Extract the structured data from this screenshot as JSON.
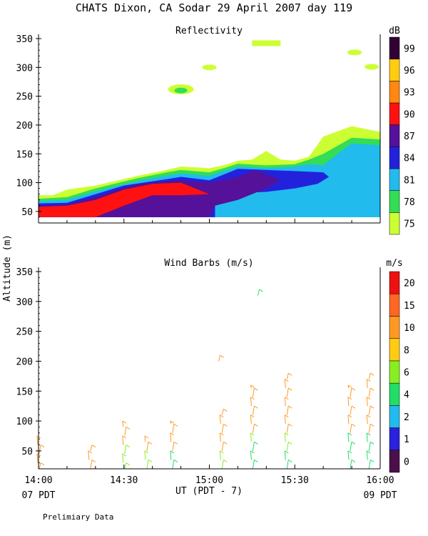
{
  "title": "CHATS Dixon, CA  Sodar  29 April 2007  day 119",
  "footer_note": "Prelimiary Data",
  "ylabel": "Altitude  (m)",
  "xlabel": "UT  (PDT - 7)",
  "x_left_sub": "07 PDT",
  "x_right_sub": "09 PDT",
  "x_ticks": [
    "14:00",
    "14:30",
    "15:00",
    "15:30",
    "16:00"
  ],
  "y_ticks": [
    "50",
    "100",
    "150",
    "200",
    "250",
    "300",
    "350"
  ],
  "chart_data": [
    {
      "type": "heatmap",
      "title": "Reflectivity",
      "colorbar_unit": "dB",
      "colorbar_levels": [
        "75",
        "78",
        "81",
        "84",
        "87",
        "90",
        "93",
        "96",
        "99"
      ],
      "colorbar_colors": [
        "#ccff33",
        "#33dd55",
        "#22bbee",
        "#2222dd",
        "#551199",
        "#ff1111",
        "#ff8811",
        "#ffcc11",
        "#330033"
      ],
      "x_range": [
        "14:00",
        "16:00"
      ],
      "ylim": [
        30,
        350
      ],
      "layers": [
        {
          "level": "75",
          "polygon": [
            [
              0,
              40
            ],
            [
              0,
              78
            ],
            [
              5,
              78
            ],
            [
              10,
              88
            ],
            [
              20,
              95
            ],
            [
              35,
              112
            ],
            [
              45,
              122
            ],
            [
              50,
              128
            ],
            [
              60,
              125
            ],
            [
              65,
              130
            ],
            [
              70,
              138
            ],
            [
              75,
              140
            ],
            [
              80,
              155
            ],
            [
              85,
              140
            ],
            [
              90,
              138
            ],
            [
              95,
              145
            ],
            [
              100,
              180
            ],
            [
              110,
              198
            ],
            [
              120,
              188
            ],
            [
              120,
              40
            ]
          ]
        },
        {
          "level": "78",
          "polygon": [
            [
              0,
              40
            ],
            [
              0,
              72
            ],
            [
              10,
              75
            ],
            [
              20,
              90
            ],
            [
              35,
              108
            ],
            [
              45,
              118
            ],
            [
              50,
              122
            ],
            [
              60,
              118
            ],
            [
              65,
              125
            ],
            [
              70,
              133
            ],
            [
              80,
              130
            ],
            [
              90,
              132
            ],
            [
              95,
              140
            ],
            [
              100,
              150
            ],
            [
              110,
              178
            ],
            [
              120,
              175
            ],
            [
              120,
              40
            ]
          ]
        },
        {
          "level": "81",
          "polygon": [
            [
              0,
              40
            ],
            [
              0,
              68
            ],
            [
              10,
              70
            ],
            [
              20,
              85
            ],
            [
              35,
              103
            ],
            [
              45,
              112
            ],
            [
              50,
              116
            ],
            [
              60,
              112
            ],
            [
              65,
              120
            ],
            [
              70,
              128
            ],
            [
              80,
              125
            ],
            [
              90,
              128
            ],
            [
              95,
              132
            ],
            [
              100,
              130
            ],
            [
              105,
              150
            ],
            [
              110,
              168
            ],
            [
              120,
              165
            ],
            [
              120,
              40
            ]
          ]
        },
        {
          "level": "84",
          "polygon": [
            [
              0,
              40
            ],
            [
              0,
              64
            ],
            [
              10,
              65
            ],
            [
              20,
              80
            ],
            [
              30,
              95
            ],
            [
              45,
              106
            ],
            [
              50,
              110
            ],
            [
              60,
              104
            ],
            [
              70,
              124
            ],
            [
              80,
              122
            ],
            [
              90,
              120
            ],
            [
              100,
              118
            ],
            [
              102,
              110
            ],
            [
              98,
              98
            ],
            [
              90,
              90
            ],
            [
              80,
              84
            ],
            [
              70,
              82
            ],
            [
              62,
              70
            ],
            [
              62,
              40
            ]
          ]
        },
        {
          "level": "87",
          "polygon": [
            [
              0,
              40
            ],
            [
              0,
              60
            ],
            [
              10,
              62
            ],
            [
              20,
              75
            ],
            [
              28,
              88
            ],
            [
              35,
              98
            ],
            [
              50,
              104
            ],
            [
              60,
              100
            ],
            [
              70,
              110
            ],
            [
              76,
              122
            ],
            [
              85,
              105
            ],
            [
              80,
              90
            ],
            [
              70,
              70
            ],
            [
              62,
              60
            ],
            [
              60,
              40
            ]
          ]
        },
        {
          "level": "90",
          "polygon": [
            [
              0,
              40
            ],
            [
              0,
              58
            ],
            [
              10,
              60
            ],
            [
              20,
              70
            ],
            [
              30,
              88
            ],
            [
              40,
              98
            ],
            [
              50,
              100
            ],
            [
              55,
              90
            ],
            [
              60,
              80
            ],
            [
              50,
              78
            ],
            [
              40,
              78
            ],
            [
              30,
              60
            ],
            [
              20,
              40
            ]
          ]
        }
      ],
      "patches": [
        {
          "level": "75",
          "x": 50,
          "y": 262,
          "note": "elliptical"
        },
        {
          "level": "78",
          "x": 50,
          "y": 260
        },
        {
          "level": "75",
          "x": 60,
          "y": 300
        },
        {
          "level": "75",
          "x": 80,
          "y": 342
        },
        {
          "level": "75",
          "x": 111,
          "y": 326
        },
        {
          "level": "75",
          "x": 117,
          "y": 301
        }
      ]
    },
    {
      "type": "scatter",
      "title": "Wind Barbs  (m/s)",
      "colorbar_unit": "m/s",
      "colorbar_levels": [
        "0",
        "1",
        "2",
        "4",
        "6",
        "8",
        "10",
        "15",
        "20"
      ],
      "colorbar_colors": [
        "#4b0f4a",
        "#2a22dd",
        "#22bbee",
        "#22dd66",
        "#88ee22",
        "#ffcc11",
        "#ff9922",
        "#ff6622",
        "#ee1111"
      ],
      "x_range": [
        "14:00",
        "16:00"
      ],
      "ylim": [
        20,
        350
      ],
      "profiles": [
        {
          "x": 14.0,
          "tops": [
            20,
            30,
            45,
            60,
            75
          ],
          "speed": [
            10,
            10,
            10,
            10,
            10
          ]
        },
        {
          "x": 14.3,
          "tops": [
            20,
            35,
            50,
            60
          ],
          "speed": [
            10,
            10,
            10,
            10
          ]
        },
        {
          "x": 14.5,
          "tops": [
            20,
            30,
            45,
            60,
            75,
            90,
            100
          ],
          "speed": [
            6,
            6,
            6,
            10,
            10,
            10,
            10
          ]
        },
        {
          "x": 14.63,
          "tops": [
            20,
            35,
            50,
            65,
            75
          ],
          "speed": [
            6,
            6,
            10,
            10,
            10
          ]
        },
        {
          "x": 14.78,
          "tops": [
            20,
            35,
            50,
            65,
            80,
            95,
            100
          ],
          "speed": [
            4,
            4,
            10,
            10,
            10,
            10,
            10
          ]
        },
        {
          "x": 15.07,
          "tops": [
            20,
            35,
            50,
            65,
            80,
            95,
            110,
            120
          ],
          "speed": [
            6,
            6,
            10,
            10,
            10,
            10,
            10,
            10
          ]
        },
        {
          "x": 15.05,
          "tops": [
            200,
            210
          ],
          "speed": [
            10,
            10
          ],
          "note": "isolated"
        },
        {
          "x": 15.25,
          "tops": [
            20,
            35,
            50,
            65,
            80,
            95,
            110,
            125,
            140,
            155,
            160
          ],
          "speed": [
            4,
            4,
            4,
            6,
            10,
            10,
            10,
            10,
            10,
            10,
            10
          ]
        },
        {
          "x": 15.28,
          "tops": [
            310,
            320
          ],
          "speed": [
            4,
            4
          ],
          "note": "isolated"
        },
        {
          "x": 15.45,
          "tops": [
            20,
            35,
            50,
            65,
            80,
            95,
            110,
            125,
            140,
            155,
            170,
            180
          ],
          "speed": [
            4,
            4,
            6,
            6,
            10,
            10,
            10,
            10,
            10,
            10,
            10,
            10
          ]
        },
        {
          "x": 15.82,
          "tops": [
            20,
            35,
            50,
            65,
            80,
            95,
            110,
            125,
            140,
            155,
            160
          ],
          "speed": [
            4,
            4,
            4,
            4,
            10,
            10,
            10,
            10,
            10,
            10,
            10
          ]
        },
        {
          "x": 15.93,
          "tops": [
            20,
            35,
            50,
            65,
            80,
            95,
            110,
            125,
            140,
            155,
            170,
            180
          ],
          "speed": [
            4,
            4,
            4,
            4,
            10,
            10,
            10,
            10,
            10,
            10,
            10,
            10
          ]
        }
      ]
    }
  ]
}
